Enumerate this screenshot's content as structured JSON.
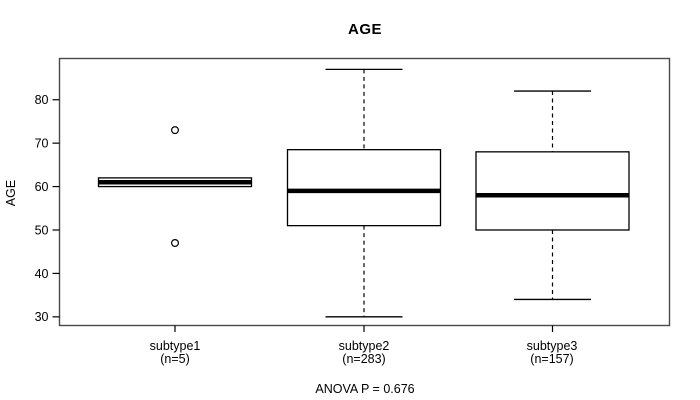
{
  "chart_data": {
    "type": "boxplot",
    "title": "AGE",
    "xlabel": "",
    "ylabel": "AGE",
    "ylim": [
      28,
      89.5
    ],
    "yticks": [
      30,
      40,
      50,
      60,
      70,
      80
    ],
    "grid": false,
    "legend": null,
    "annotation": "ANOVA P = 0.676",
    "groups": [
      {
        "label": "subtype1",
        "n_label": "(n=5)",
        "n": 5,
        "q1": 60,
        "median": 61,
        "q3": 62,
        "whisker_low": 60,
        "whisker_high": 62,
        "outliers": [
          73,
          47
        ]
      },
      {
        "label": "subtype2",
        "n_label": "(n=283)",
        "n": 283,
        "q1": 51,
        "median": 59,
        "q3": 68.5,
        "whisker_low": 30,
        "whisker_high": 87,
        "outliers": []
      },
      {
        "label": "subtype3",
        "n_label": "(n=157)",
        "n": 157,
        "q1": 50,
        "median": 58,
        "q3": 68,
        "whisker_low": 34,
        "whisker_high": 82,
        "outliers": []
      }
    ],
    "colors": {
      "line": "#000000",
      "frame": "#4a4a4a",
      "box_fill": "#ffffff",
      "background": "#ffffff",
      "text": "#000000"
    }
  }
}
